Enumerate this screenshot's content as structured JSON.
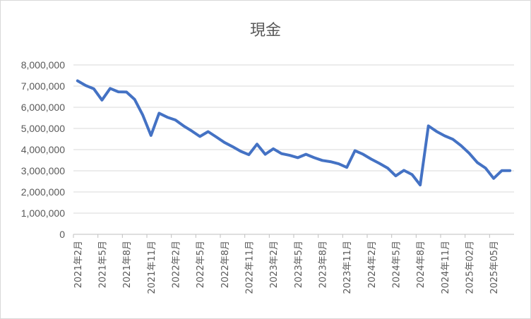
{
  "chart_data": {
    "type": "line",
    "title": "現金",
    "xlabel": "",
    "ylabel": "",
    "ylim": [
      0,
      8000000
    ],
    "yticks": [
      0,
      1000000,
      2000000,
      3000000,
      4000000,
      5000000,
      6000000,
      7000000,
      8000000
    ],
    "ytick_labels": [
      "0",
      "1,000,000",
      "2,000,000",
      "3,000,000",
      "4,000,000",
      "5,000,000",
      "6,000,000",
      "7,000,000",
      "8,000,000"
    ],
    "grid": true,
    "legend": "none",
    "color": "#4472c4",
    "categories": [
      "2021年2月",
      "2021年3月",
      "2021年4月",
      "2021年5月",
      "2021年6月",
      "2021年7月",
      "2021年8月",
      "2021年9月",
      "2021年10月",
      "2021年11月",
      "2021年12月",
      "2022年1月",
      "2022年2月",
      "2022年3月",
      "2022年4月",
      "2022年5月",
      "2022年6月",
      "2022年7月",
      "2022年8月",
      "2022年9月",
      "2022年10月",
      "2022年11月",
      "2022年12月",
      "2023年1月",
      "2023年2月",
      "2023年3月",
      "2023年4月",
      "2023年5月",
      "2023年6月",
      "2023年7月",
      "2023年8月",
      "2023年9月",
      "2023年10月",
      "2023年11月",
      "2023年12月",
      "2024年1月",
      "2024年2月",
      "2024年3月",
      "2024年4月",
      "2024年5月",
      "2024年6月",
      "2024年7月",
      "2024年8月",
      "2024年9月",
      "2024年10月",
      "2024年11月",
      "2024年12月",
      "2025年01月",
      "2025年02月",
      "2025年03月",
      "2025年04月",
      "2025年05月",
      "2025年06月",
      "2025年07月"
    ],
    "x_tick_labels_shown": [
      "2021年2月",
      "2021年5月",
      "2021年8月",
      "2021年11月",
      "2022年2月",
      "2022年5月",
      "2022年8月",
      "2022年11月",
      "2023年2月",
      "2023年5月",
      "2023年8月",
      "2023年11月",
      "2024年2月",
      "2024年5月",
      "2024年8月",
      "2024年11月",
      "2025年02月",
      "2025年05月"
    ],
    "values": [
      7250000,
      7030000,
      6870000,
      6340000,
      6890000,
      6730000,
      6720000,
      6370000,
      5630000,
      4670000,
      5720000,
      5530000,
      5400000,
      5120000,
      4880000,
      4620000,
      4850000,
      4600000,
      4340000,
      4140000,
      3920000,
      3760000,
      4260000,
      3780000,
      4040000,
      3810000,
      3730000,
      3620000,
      3780000,
      3620000,
      3490000,
      3430000,
      3330000,
      3160000,
      3950000,
      3780000,
      3550000,
      3350000,
      3130000,
      2760000,
      3020000,
      2820000,
      2330000,
      5120000,
      4860000,
      4650000,
      4490000,
      4190000,
      3830000,
      3390000,
      3130000,
      2640000,
      3010000,
      3010000
    ]
  }
}
